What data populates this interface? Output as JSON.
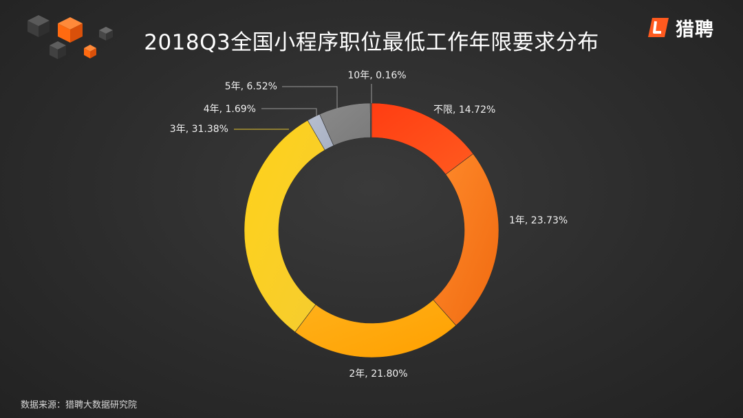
{
  "title": "2018Q3全国小程序职位最低工作年限要求分布",
  "brand": {
    "name": "猎聘",
    "logo_icon": "liepin-logo-icon",
    "accent": "#ff5a1f"
  },
  "source": "数据来源：猎聘大数据研究院",
  "chart_data": {
    "type": "pie",
    "donut": true,
    "title": "2018Q3全国小程序职位最低工作年限要求分布",
    "legend": "none",
    "series": [
      {
        "slices": [
          {
            "label": "不限",
            "value": 14.72,
            "display": "不限, 14.72%",
            "color": "#ff3d12",
            "color2": "#ff5a1f"
          },
          {
            "label": "1年",
            "value": 23.73,
            "display": "1年, 23.73%",
            "color": "#ff8a2b",
            "color2": "#f06a10"
          },
          {
            "label": "2年",
            "value": 21.8,
            "display": "2年, 21.80%",
            "color": "#ffb11a",
            "color2": "#ffa000"
          },
          {
            "label": "3年",
            "value": 31.38,
            "display": "3年, 31.38%",
            "color": "#ffd21a",
            "color2": "#f5cc30"
          },
          {
            "label": "4年",
            "value": 1.69,
            "display": "4年, 1.69%",
            "color": "#b7bfd0",
            "color2": "#a8b0c2"
          },
          {
            "label": "5年",
            "value": 6.52,
            "display": "5年, 6.52%",
            "color": "#8a8a8a",
            "color2": "#7a7a7a"
          },
          {
            "label": "10年",
            "value": 0.16,
            "display": "10年, 0.16%",
            "color": "#6a6a6a",
            "color2": "#5a5a5a"
          }
        ]
      }
    ]
  }
}
